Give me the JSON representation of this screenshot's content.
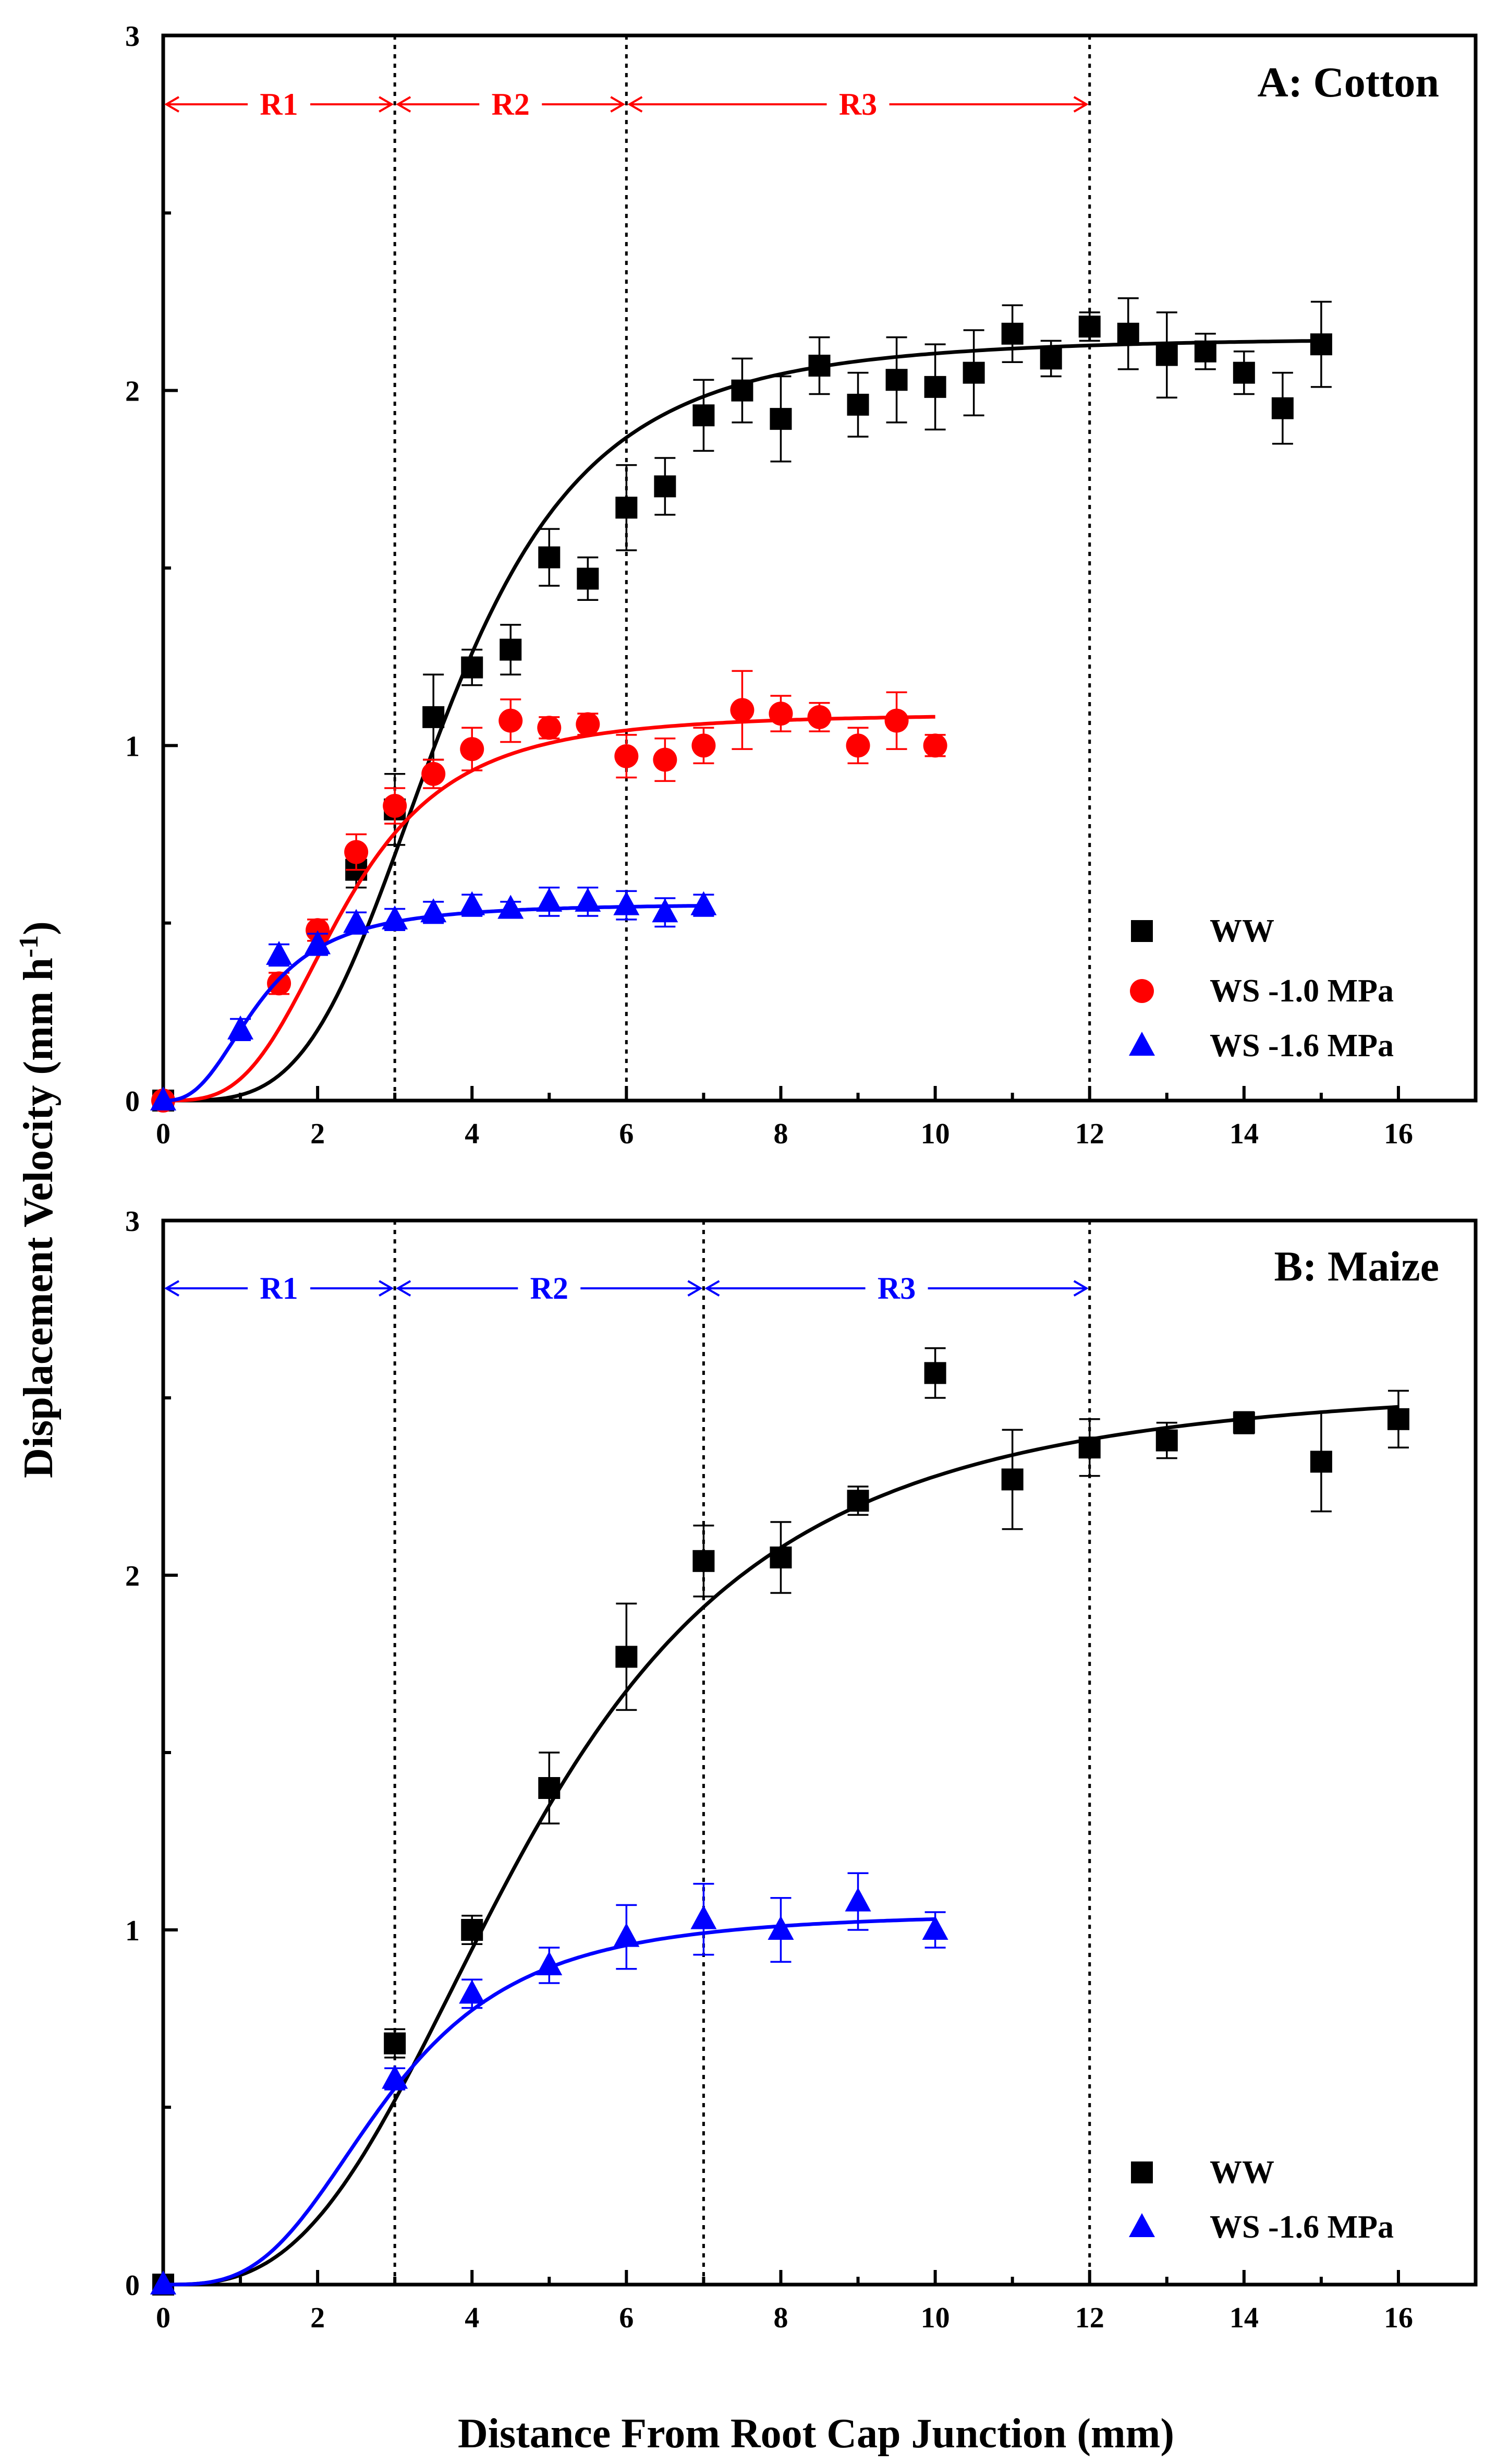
{
  "chart_data": [
    {
      "type": "scatter",
      "title": "A: Cotton",
      "xlabel": "",
      "ylabel": "Displacement Velocity (mm h-1)",
      "xlim": [
        0,
        17
      ],
      "ylim": [
        0,
        3
      ],
      "xticks": [
        0,
        2,
        4,
        6,
        8,
        10,
        12,
        14,
        16
      ],
      "yticks": [
        0,
        1,
        2,
        3
      ],
      "region_color": "#ff0000",
      "regions": [
        {
          "label": "R1",
          "start": 0,
          "end": 3
        },
        {
          "label": "R2",
          "start": 3,
          "end": 6
        },
        {
          "label": "R3",
          "start": 6,
          "end": 12
        }
      ],
      "vlines": [
        3,
        6,
        12
      ],
      "series": [
        {
          "name": "WW",
          "marker": "square",
          "color": "#000000",
          "x": [
            0,
            2.5,
            3,
            3.5,
            4,
            4.5,
            5,
            5.5,
            6,
            6.5,
            7,
            7.5,
            8,
            8.5,
            9,
            9.5,
            10,
            10.5,
            11,
            11.5,
            12,
            12.5,
            13,
            13.5,
            14,
            14.5,
            15
          ],
          "y": [
            0,
            0.65,
            0.82,
            1.08,
            1.22,
            1.27,
            1.53,
            1.47,
            1.67,
            1.73,
            1.93,
            2.0,
            1.92,
            2.07,
            1.96,
            2.03,
            2.01,
            2.05,
            2.16,
            2.09,
            2.18,
            2.16,
            2.1,
            2.11,
            2.05,
            1.95,
            2.13
          ],
          "err": [
            0,
            0.05,
            0.1,
            0.12,
            0.05,
            0.07,
            0.08,
            0.06,
            0.12,
            0.08,
            0.1,
            0.09,
            0.12,
            0.08,
            0.09,
            0.12,
            0.12,
            0.12,
            0.08,
            0.05,
            0.04,
            0.1,
            0.12,
            0.05,
            0.06,
            0.1,
            0.12
          ],
          "fit": {
            "ymax": 2.15,
            "n": 3.8,
            "k": 3.65
          }
        },
        {
          "name": "WS -1.0 MPa",
          "marker": "circle",
          "color": "#ff0000",
          "x": [
            0,
            1.5,
            2,
            2.5,
            3,
            3.5,
            4,
            4.5,
            5,
            5.5,
            6,
            6.5,
            7,
            7.5,
            8,
            8.5,
            9,
            9.5,
            10
          ],
          "y": [
            0,
            0.33,
            0.48,
            0.7,
            0.83,
            0.92,
            0.99,
            1.07,
            1.05,
            1.06,
            0.97,
            0.96,
            1.0,
            1.1,
            1.09,
            1.08,
            1.0,
            1.07,
            1.0
          ],
          "err": [
            0,
            0.03,
            0.03,
            0.05,
            0.05,
            0.04,
            0.06,
            0.06,
            0.03,
            0.03,
            0.06,
            0.06,
            0.05,
            0.11,
            0.05,
            0.04,
            0.05,
            0.08,
            0.03
          ],
          "fit": {
            "ymax": 1.09,
            "n": 3.3,
            "k": 2.35
          }
        },
        {
          "name": "WS -1.6 MPa",
          "marker": "triangle",
          "color": "#0000ff",
          "x": [
            0,
            1,
            1.5,
            2,
            2.5,
            3,
            3.5,
            4,
            4.5,
            5,
            5.5,
            6,
            6.5,
            7
          ],
          "y": [
            0,
            0.2,
            0.41,
            0.44,
            0.5,
            0.51,
            0.53,
            0.55,
            0.54,
            0.56,
            0.56,
            0.55,
            0.53,
            0.55
          ],
          "err": [
            0,
            0.03,
            0.03,
            0.03,
            0.03,
            0.03,
            0.03,
            0.03,
            0.02,
            0.04,
            0.04,
            0.04,
            0.04,
            0.03
          ],
          "fit": {
            "ymax": 0.555,
            "n": 2.6,
            "k": 1.25
          }
        }
      ]
    },
    {
      "type": "scatter",
      "title": "B: Maize",
      "xlabel": "Distance From Root Cap Junction (mm)",
      "ylabel": "",
      "xlim": [
        0,
        17
      ],
      "ylim": [
        0,
        3
      ],
      "xticks": [
        0,
        2,
        4,
        6,
        8,
        10,
        12,
        14,
        16
      ],
      "yticks": [
        0,
        1,
        2,
        3
      ],
      "region_color": "#0000ff",
      "regions": [
        {
          "label": "R1",
          "start": 0,
          "end": 3
        },
        {
          "label": "R2",
          "start": 3,
          "end": 7
        },
        {
          "label": "R3",
          "start": 7,
          "end": 12
        }
      ],
      "vlines": [
        3,
        7,
        12
      ],
      "series": [
        {
          "name": "WW",
          "marker": "square",
          "color": "#000000",
          "x": [
            0,
            3,
            4,
            5,
            6,
            7,
            8,
            9,
            10,
            11,
            12,
            13,
            14,
            15,
            16
          ],
          "y": [
            0,
            0.68,
            1.0,
            1.4,
            1.77,
            2.04,
            2.05,
            2.21,
            2.57,
            2.27,
            2.36,
            2.38,
            2.43,
            2.32,
            2.44
          ],
          "err": [
            0,
            0.04,
            0.04,
            0.1,
            0.15,
            0.1,
            0.1,
            0.04,
            0.07,
            0.14,
            0.08,
            0.05,
            0.03,
            0.14,
            0.08
          ],
          "fit": {
            "ymax": 2.55,
            "n": 2.9,
            "k": 4.8
          }
        },
        {
          "name": "WS -1.6 MPa",
          "marker": "triangle",
          "color": "#0000ff",
          "x": [
            0,
            3,
            4,
            5,
            6,
            7,
            8,
            9,
            10
          ],
          "y": [
            0,
            0.58,
            0.82,
            0.9,
            0.98,
            1.03,
            1.0,
            1.08,
            1.0
          ],
          "err": [
            0,
            0.03,
            0.04,
            0.05,
            0.09,
            0.1,
            0.09,
            0.08,
            0.05
          ],
          "fit": {
            "ymax": 1.05,
            "n": 3.2,
            "k": 2.9
          }
        }
      ]
    }
  ]
}
